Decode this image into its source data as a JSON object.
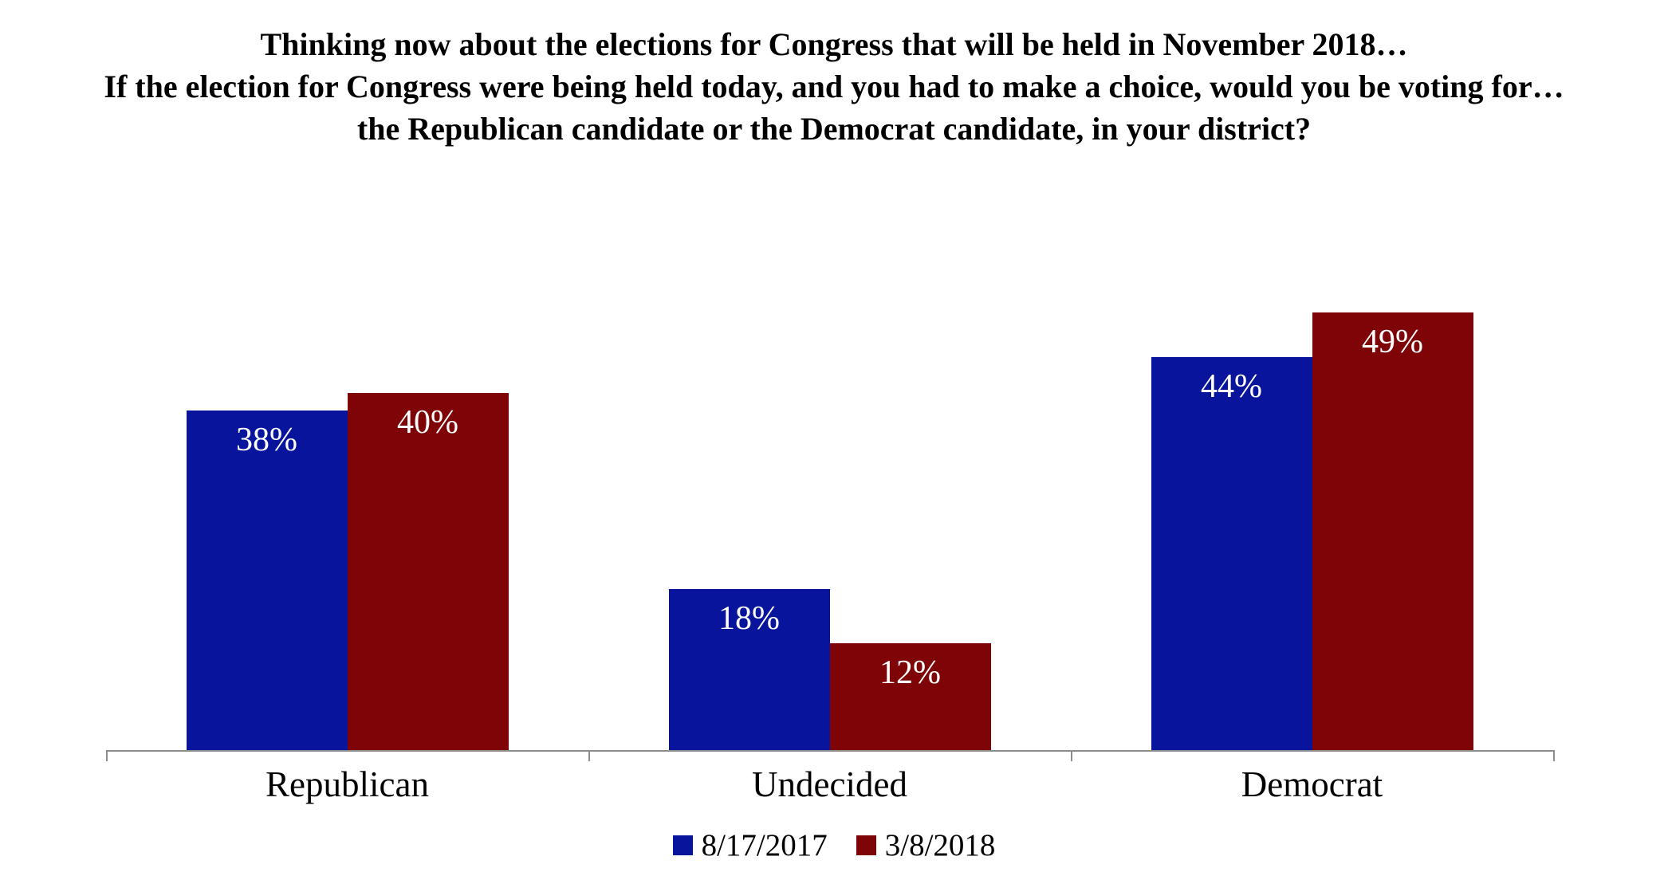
{
  "title": {
    "lines": [
      "Thinking now about the elections for Congress that will be held in November 2018…",
      "If the election for Congress were being held today, and you had to make a choice, would you be voting for…",
      "the Republican candidate or the Democrat candidate, in your district?"
    ]
  },
  "chart_data": {
    "type": "bar",
    "categories": [
      "Republican",
      "Undecided",
      "Democrat"
    ],
    "series": [
      {
        "name": "8/17/2017",
        "color": "#08149B",
        "values": [
          38,
          18,
          44
        ],
        "labels": [
          "38%",
          "18%",
          "44%"
        ]
      },
      {
        "name": "3/8/2018",
        "color": "#7E0407",
        "values": [
          40,
          12,
          49
        ],
        "labels": [
          "40%",
          "12%",
          "49%"
        ]
      }
    ],
    "ylim": [
      0,
      60
    ],
    "grid": false,
    "y_axis_visible": false,
    "legend_position": "bottom",
    "data_label_position": "inside-end",
    "data_label_color": "#FFFFFF",
    "axis_color": "#8C8C8C",
    "text_color": "#000000",
    "background_color": "#FFFFFF"
  }
}
